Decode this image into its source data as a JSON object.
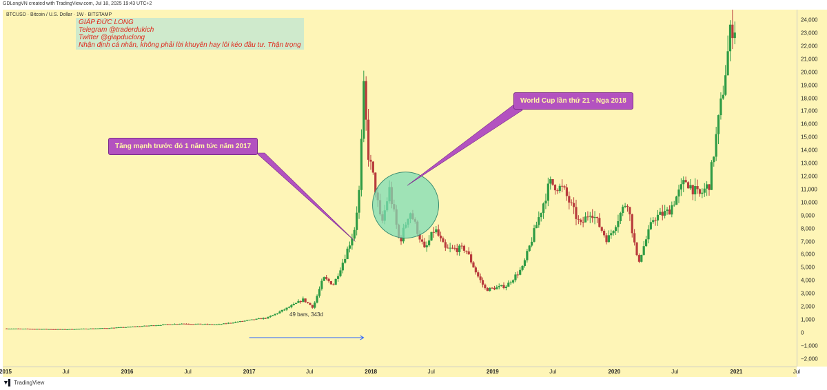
{
  "header": {
    "created_text": "GDLongVN created with TradingView.com, Jul 18, 2025 19:43 UTC+2"
  },
  "symbol_line": "BTCUSD · Bitcoin / U.S. Dollar · 1W · BITSTAMP",
  "credit_lines": [
    "GIÁP ĐỨC LONG",
    "Telegram @traderdukich",
    "Twitter @giapduclong",
    "Nhận định cá nhân, không phải lời khuyên hay lôi kéo đầu tư. Thận trọng"
  ],
  "callouts": {
    "rally": "Tăng mạnh trước đó 1 năm tức năm 2017",
    "worldcup": "World Cup lần thứ 21 - Nga 2018"
  },
  "measure": {
    "label": "49 bars, 343d"
  },
  "footer": {
    "brand": "TradingView",
    "logo": "tv-logo-icon"
  },
  "colors": {
    "background": "#fef5b7",
    "up": "#2e9b44",
    "down": "#b83c3c",
    "callout": "#b352c0",
    "circle": "#7fdcb6"
  },
  "chart_data": {
    "type": "candlestick",
    "title": "BTCUSD · Bitcoin / U.S. Dollar · 1W · BITSTAMP",
    "y_ticks": [
      24000,
      23000,
      22000,
      21000,
      20000,
      19000,
      18000,
      17000,
      16000,
      15000,
      14000,
      13000,
      12000,
      11000,
      10000,
      9000,
      8000,
      7000,
      6000,
      5000,
      4000,
      3000,
      2000,
      1000,
      0,
      -1000,
      -2000
    ],
    "y_tick_labels": [
      "24,000",
      "23,000",
      "22,000",
      "21,000",
      "20,000",
      "19,000",
      "18,000",
      "17,000",
      "16,000",
      "15,000",
      "14,000",
      "13,000",
      "12,000",
      "11,000",
      "10,000",
      "9,000",
      "8,000",
      "7,000",
      "6,000",
      "5,000",
      "4,000",
      "3,000",
      "2,000",
      "1,000",
      "0",
      "−1,000",
      "−2,000"
    ],
    "ylim": [
      -2600,
      24800
    ],
    "x_ticks": [
      {
        "label": "2015",
        "date": "2015-01-01",
        "year": true
      },
      {
        "label": "Jul",
        "date": "2015-07-01",
        "year": false
      },
      {
        "label": "2016",
        "date": "2016-01-01",
        "year": true
      },
      {
        "label": "Jul",
        "date": "2016-07-01",
        "year": false
      },
      {
        "label": "2017",
        "date": "2017-01-01",
        "year": true
      },
      {
        "label": "Jul",
        "date": "2017-07-01",
        "year": false
      },
      {
        "label": "2018",
        "date": "2018-01-01",
        "year": true
      },
      {
        "label": "Jul",
        "date": "2018-07-01",
        "year": false
      },
      {
        "label": "2019",
        "date": "2019-01-01",
        "year": true
      },
      {
        "label": "Jul",
        "date": "2019-07-01",
        "year": false
      },
      {
        "label": "2020",
        "date": "2020-01-01",
        "year": true
      },
      {
        "label": "Jul",
        "date": "2020-07-01",
        "year": false
      },
      {
        "label": "2021",
        "date": "2021-01-01",
        "year": true
      },
      {
        "label": "Jul",
        "date": "2021-07-01",
        "year": false
      }
    ],
    "xlim": [
      "2015-01-01",
      "2021-07-01"
    ],
    "series": [
      {
        "name": "BTCUSD",
        "points": [
          {
            "date": "2015-01-01",
            "close": 320
          },
          {
            "date": "2015-07-01",
            "close": 260
          },
          {
            "date": "2015-11-01",
            "close": 350
          },
          {
            "date": "2016-01-01",
            "close": 430
          },
          {
            "date": "2016-06-15",
            "close": 700
          },
          {
            "date": "2016-10-01",
            "close": 620
          },
          {
            "date": "2017-01-01",
            "close": 950
          },
          {
            "date": "2017-03-01",
            "close": 1150
          },
          {
            "date": "2017-05-15",
            "close": 2100
          },
          {
            "date": "2017-06-15",
            "close": 2550
          },
          {
            "date": "2017-07-15",
            "close": 1950
          },
          {
            "date": "2017-08-15",
            "close": 4200
          },
          {
            "date": "2017-09-15",
            "close": 3700
          },
          {
            "date": "2017-10-15",
            "close": 5600
          },
          {
            "date": "2017-11-15",
            "close": 7800
          },
          {
            "date": "2017-12-01",
            "close": 11000
          },
          {
            "date": "2017-12-15",
            "close": 19200
          },
          {
            "date": "2017-12-25",
            "close": 14000
          },
          {
            "date": "2018-01-15",
            "close": 11500
          },
          {
            "date": "2018-02-05",
            "close": 8200
          },
          {
            "date": "2018-03-01",
            "close": 11000
          },
          {
            "date": "2018-04-01",
            "close": 6900
          },
          {
            "date": "2018-05-01",
            "close": 9400
          },
          {
            "date": "2018-06-15",
            "close": 6300
          },
          {
            "date": "2018-07-15",
            "close": 8000
          },
          {
            "date": "2018-08-15",
            "close": 6400
          },
          {
            "date": "2018-10-15",
            "close": 6450
          },
          {
            "date": "2018-11-20",
            "close": 4400
          },
          {
            "date": "2018-12-15",
            "close": 3300
          },
          {
            "date": "2019-02-15",
            "close": 3600
          },
          {
            "date": "2019-04-05",
            "close": 5000
          },
          {
            "date": "2019-05-15",
            "close": 8200
          },
          {
            "date": "2019-06-25",
            "close": 11500
          },
          {
            "date": "2019-08-05",
            "close": 11000
          },
          {
            "date": "2019-09-25",
            "close": 8200
          },
          {
            "date": "2019-10-26",
            "close": 9400
          },
          {
            "date": "2019-12-15",
            "close": 7100
          },
          {
            "date": "2020-02-12",
            "close": 10200
          },
          {
            "date": "2020-03-15",
            "close": 5300
          },
          {
            "date": "2020-05-01",
            "close": 8800
          },
          {
            "date": "2020-06-15",
            "close": 9300
          },
          {
            "date": "2020-08-05",
            "close": 11700
          },
          {
            "date": "2020-09-15",
            "close": 10500
          },
          {
            "date": "2020-10-15",
            "close": 11400
          },
          {
            "date": "2020-11-25",
            "close": 18500
          },
          {
            "date": "2020-12-20",
            "close": 23500
          }
        ]
      }
    ],
    "grid": false
  }
}
